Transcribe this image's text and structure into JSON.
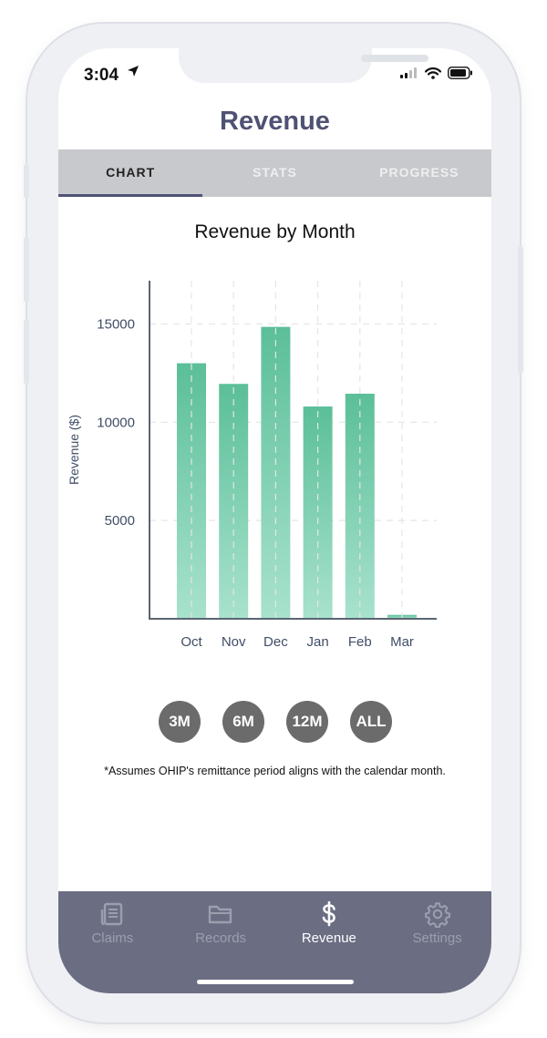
{
  "status_bar": {
    "time": "3:04"
  },
  "header": {
    "title": "Revenue"
  },
  "tabs": [
    {
      "label": "CHART",
      "active": true
    },
    {
      "label": "STATS",
      "active": false
    },
    {
      "label": "PROGRESS",
      "active": false
    }
  ],
  "chart_data": {
    "type": "bar",
    "title": "Revenue by Month",
    "xlabel": "",
    "ylabel": "Revenue ($)",
    "categories": [
      "Oct",
      "Nov",
      "Dec",
      "Jan",
      "Feb",
      "Mar"
    ],
    "values": [
      13000,
      11950,
      14850,
      10800,
      11450,
      200
    ],
    "yticks": [
      5000,
      10000,
      15000
    ],
    "ylim": [
      0,
      17200
    ],
    "grid": true,
    "colors": {
      "bar_top": "#5bbf99",
      "bar_bottom": "#a8e2cd",
      "axis": "#5a6570",
      "tick_label": "#3f4d66"
    }
  },
  "range_buttons": [
    "3M",
    "6M",
    "12M",
    "ALL"
  ],
  "footnote": "*Assumes OHIP's remittance period aligns with the calendar month.",
  "bottom_nav": [
    {
      "label": "Claims",
      "icon": "document-icon",
      "active": false
    },
    {
      "label": "Records",
      "icon": "folder-icon",
      "active": false
    },
    {
      "label": "Revenue",
      "icon": "dollar-icon",
      "active": true
    },
    {
      "label": "Settings",
      "icon": "gear-icon",
      "active": false
    }
  ],
  "colors": {
    "accent": "#4f5273",
    "tab_bar": "#c8c9cc",
    "bottom_bar": "#6b6d83",
    "range_button": "#6b6b6b"
  }
}
